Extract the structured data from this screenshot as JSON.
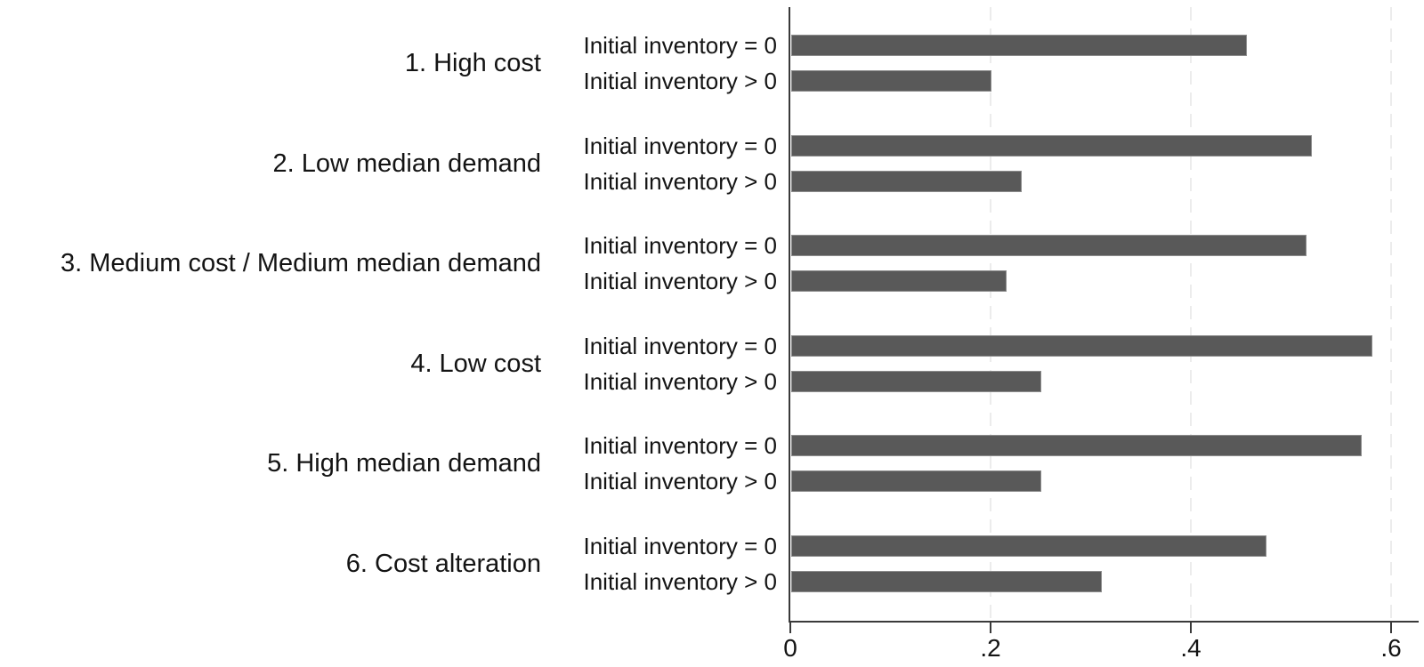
{
  "chart_data": {
    "type": "bar",
    "orientation": "horizontal",
    "title": "",
    "xlabel": "",
    "ylabel": "",
    "categories": [
      "1. High cost",
      "2. Low median demand",
      "3. Medium cost / Medium median demand",
      "4. Low cost",
      "5. High median demand",
      "6. Cost alteration"
    ],
    "series": [
      {
        "name": "Initial inventory = 0",
        "values": [
          0.455,
          0.52,
          0.515,
          0.58,
          0.57,
          0.475
        ]
      },
      {
        "name": "Initial inventory > 0",
        "values": [
          0.2,
          0.23,
          0.215,
          0.25,
          0.25,
          0.31
        ]
      }
    ],
    "bar_label_style": "series name printed to the left of each bar",
    "x_ticks": [
      {
        "value": 0.0,
        "label": "0"
      },
      {
        "value": 0.2,
        "label": ".2"
      },
      {
        "value": 0.4,
        "label": ".4"
      },
      {
        "value": 0.6,
        "label": ".6"
      }
    ],
    "xlim": [
      0,
      0.628
    ],
    "gridlines_at": [
      0.2,
      0.4,
      0.6
    ],
    "grid_style": "vertical dashed",
    "legend": "none",
    "colors": {
      "bar": "#595959",
      "bar_border": "#8c8c8c",
      "axis": "#3a3a3a",
      "gridline": "#ececec",
      "text": "#141414",
      "background": "#ffffff"
    }
  }
}
